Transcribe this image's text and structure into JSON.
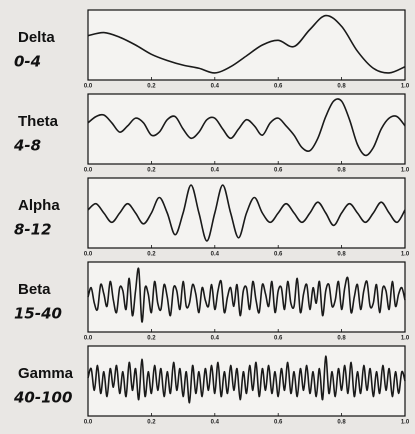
{
  "chart_data": [
    {
      "type": "line",
      "title": "Delta",
      "subtitle": "0-4",
      "color": "#1a1a1a",
      "xlim": [
        0,
        1
      ],
      "ylim": [
        -1,
        1
      ],
      "xticks": [
        {
          "value": 0,
          "label": "0.0"
        },
        0.2,
        0.4,
        0.6,
        0.8,
        {
          "value": 1,
          "label": "1.0"
        }
      ],
      "x": [
        0,
        0.05,
        0.1,
        0.15,
        0.2,
        0.25,
        0.3,
        0.35,
        0.4,
        0.45,
        0.5,
        0.55,
        0.6,
        0.65,
        0.7,
        0.75,
        0.8,
        0.85,
        0.9,
        0.95,
        1
      ],
      "values": [
        0.3,
        0.4,
        0.25,
        0.0,
        -0.3,
        -0.5,
        -0.65,
        -0.75,
        -0.9,
        -0.7,
        -0.35,
        0.0,
        0.15,
        -0.05,
        0.5,
        0.95,
        0.6,
        -0.2,
        -0.75,
        -0.9,
        -0.7
      ]
    },
    {
      "type": "line",
      "title": "Theta",
      "subtitle": "4-8",
      "color": "#1a1a1a",
      "xlim": [
        0,
        1
      ],
      "ylim": [
        -1,
        1
      ],
      "xticks": [
        {
          "value": 0,
          "label": "0.0"
        },
        0.2,
        0.4,
        0.6,
        0.8,
        {
          "value": 1,
          "label": "1.0"
        }
      ],
      "x": [
        0,
        0.025,
        0.05,
        0.075,
        0.1,
        0.125,
        0.15,
        0.175,
        0.2,
        0.225,
        0.25,
        0.275,
        0.3,
        0.325,
        0.35,
        0.375,
        0.4,
        0.425,
        0.45,
        0.475,
        0.5,
        0.525,
        0.55,
        0.575,
        0.6,
        0.625,
        0.65,
        0.675,
        0.7,
        0.725,
        0.75,
        0.775,
        0.8,
        0.825,
        0.85,
        0.875,
        0.9,
        0.925,
        0.95,
        0.975,
        1
      ],
      "values": [
        0.2,
        0.4,
        0.45,
        0.2,
        -0.1,
        0.1,
        0.35,
        0.2,
        -0.2,
        -0.1,
        0.3,
        0.4,
        0.0,
        -0.3,
        -0.1,
        0.3,
        0.35,
        0.0,
        -0.3,
        0.0,
        0.3,
        0.1,
        -0.2,
        0.2,
        0.35,
        0.1,
        -0.2,
        -0.6,
        -0.7,
        -0.3,
        0.4,
        0.9,
        0.9,
        0.3,
        -0.5,
        -0.85,
        -0.6,
        0.0,
        0.35,
        0.4,
        0.1
      ]
    },
    {
      "type": "line",
      "title": "Alpha",
      "subtitle": "8-12",
      "color": "#1a1a1a",
      "xlim": [
        0,
        1
      ],
      "ylim": [
        -1,
        1
      ],
      "xticks": [
        {
          "value": 0,
          "label": "0.0"
        },
        0.2,
        0.4,
        0.6,
        0.8,
        {
          "value": 1,
          "label": "1.0"
        }
      ],
      "x": [
        0,
        0.025,
        0.05,
        0.075,
        0.1,
        0.125,
        0.15,
        0.175,
        0.2,
        0.225,
        0.25,
        0.275,
        0.3,
        0.325,
        0.35,
        0.375,
        0.4,
        0.425,
        0.45,
        0.475,
        0.5,
        0.525,
        0.55,
        0.575,
        0.6,
        0.625,
        0.65,
        0.675,
        0.7,
        0.725,
        0.75,
        0.775,
        0.8,
        0.825,
        0.85,
        0.875,
        0.9,
        0.925,
        0.95,
        0.975,
        1
      ],
      "values": [
        0.1,
        0.3,
        0,
        -0.3,
        0,
        0.3,
        0,
        -0.35,
        0,
        0.5,
        0,
        -0.7,
        0,
        0.9,
        0,
        -0.9,
        0,
        0.9,
        0,
        -0.8,
        0,
        0.5,
        0,
        -0.3,
        0,
        0.3,
        0,
        -0.3,
        0,
        0.35,
        0,
        -0.4,
        0,
        0.3,
        0,
        -0.3,
        0,
        0.35,
        0,
        -0.3,
        0.1
      ]
    },
    {
      "type": "line",
      "title": "Beta",
      "subtitle": "15-40",
      "color": "#1a1a1a",
      "xlim": [
        0,
        1
      ],
      "ylim": [
        -1,
        1
      ],
      "xticks": [
        {
          "value": 0,
          "label": "0.0"
        },
        0.2,
        0.4,
        0.6,
        0.8,
        {
          "value": 1,
          "label": "1.0"
        }
      ],
      "x": [
        0,
        0.01,
        0.02,
        0.03,
        0.04,
        0.05,
        0.06,
        0.07,
        0.08,
        0.09,
        0.1,
        0.11,
        0.12,
        0.13,
        0.14,
        0.15,
        0.16,
        0.17,
        0.18,
        0.19,
        0.2,
        0.21,
        0.22,
        0.23,
        0.24,
        0.25,
        0.26,
        0.27,
        0.28,
        0.29,
        0.3,
        0.31,
        0.32,
        0.33,
        0.34,
        0.35,
        0.36,
        0.37,
        0.38,
        0.39,
        0.4,
        0.41,
        0.42,
        0.43,
        0.44,
        0.45,
        0.46,
        0.47,
        0.48,
        0.49,
        0.5,
        0.51,
        0.52,
        0.53,
        0.54,
        0.55,
        0.56,
        0.57,
        0.58,
        0.59,
        0.6,
        0.61,
        0.62,
        0.63,
        0.64,
        0.65,
        0.66,
        0.67,
        0.68,
        0.69,
        0.7,
        0.71,
        0.72,
        0.73,
        0.74,
        0.75,
        0.76,
        0.77,
        0.78,
        0.79,
        0.8,
        0.81,
        0.82,
        0.83,
        0.84,
        0.85,
        0.86,
        0.87,
        0.88,
        0.89,
        0.9,
        0.91,
        0.92,
        0.93,
        0.94,
        0.95,
        0.96,
        0.97,
        0.98,
        0.99,
        1
      ],
      "values": [
        0.0,
        0.3,
        -0.2,
        -0.4,
        0.4,
        0.1,
        -0.3,
        0.5,
        -0.1,
        -0.5,
        0.3,
        0.2,
        -0.4,
        0.6,
        -0.6,
        0.2,
        0.9,
        -0.8,
        0.3,
        0.1,
        -0.5,
        0.5,
        -0.2,
        -0.4,
        0.4,
        0.0,
        -0.6,
        0.3,
        0.2,
        -0.4,
        0.5,
        -0.3,
        -0.2,
        0.4,
        0.1,
        -0.5,
        0.3,
        -0.1,
        -0.3,
        0.4,
        -0.4,
        0.2,
        0.5,
        -0.5,
        0.0,
        0.3,
        -0.3,
        0.4,
        -0.6,
        0.2,
        0.3,
        -0.4,
        0.5,
        -0.1,
        -0.5,
        0.4,
        0.1,
        -0.3,
        0.5,
        -0.5,
        0.2,
        0.3,
        -0.4,
        0.5,
        -0.2,
        -0.3,
        0.6,
        -0.5,
        0.1,
        0.4,
        -0.4,
        0.3,
        -0.2,
        0.5,
        -0.6,
        0.2,
        0.4,
        -0.3,
        -0.1,
        0.5,
        -0.4,
        0.3,
        0.6,
        -0.5,
        0.0,
        0.4,
        -0.4,
        0.2,
        0.5,
        -0.3,
        -0.2,
        0.4,
        -0.5,
        0.3,
        0.2,
        -0.4,
        0.5,
        -0.3,
        0.1,
        0.3,
        -0.1
      ]
    },
    {
      "type": "line",
      "title": "Gamma",
      "subtitle": "40-100",
      "color": "#1a1a1a",
      "xlim": [
        0,
        1
      ],
      "ylim": [
        -1,
        1
      ],
      "xticks": [
        {
          "value": 0,
          "label": "0.0"
        },
        0.2,
        0.4,
        0.6,
        0.8,
        {
          "value": 1,
          "label": "1.0"
        }
      ],
      "x": [
        0,
        0.01,
        0.02,
        0.03,
        0.04,
        0.05,
        0.06,
        0.07,
        0.08,
        0.09,
        0.1,
        0.11,
        0.12,
        0.13,
        0.14,
        0.15,
        0.16,
        0.17,
        0.18,
        0.19,
        0.2,
        0.21,
        0.22,
        0.23,
        0.24,
        0.25,
        0.26,
        0.27,
        0.28,
        0.29,
        0.3,
        0.31,
        0.32,
        0.33,
        0.34,
        0.35,
        0.36,
        0.37,
        0.38,
        0.39,
        0.4,
        0.41,
        0.42,
        0.43,
        0.44,
        0.45,
        0.46,
        0.47,
        0.48,
        0.49,
        0.5,
        0.51,
        0.52,
        0.53,
        0.54,
        0.55,
        0.56,
        0.57,
        0.58,
        0.59,
        0.6,
        0.61,
        0.62,
        0.63,
        0.64,
        0.65,
        0.66,
        0.67,
        0.68,
        0.69,
        0.7,
        0.71,
        0.72,
        0.73,
        0.74,
        0.75,
        0.76,
        0.77,
        0.78,
        0.79,
        0.8,
        0.81,
        0.82,
        0.83,
        0.84,
        0.85,
        0.86,
        0.87,
        0.88,
        0.89,
        0.9,
        0.91,
        0.92,
        0.93,
        0.94,
        0.95,
        0.96,
        0.97,
        0.98,
        0.99,
        1
      ],
      "values": [
        0.1,
        0.4,
        -0.3,
        0.5,
        -0.4,
        0.3,
        -0.5,
        0.4,
        -0.2,
        0.5,
        -0.4,
        0.3,
        -0.5,
        0.6,
        -0.3,
        0.4,
        -0.6,
        0.7,
        -0.5,
        0.3,
        -0.4,
        0.5,
        -0.3,
        0.4,
        -0.5,
        0.3,
        -0.4,
        0.6,
        -0.3,
        0.4,
        -0.5,
        0.3,
        -0.7,
        0.5,
        -0.4,
        0.3,
        -0.5,
        0.4,
        -0.3,
        0.5,
        -0.4,
        0.6,
        -0.5,
        0.3,
        -0.4,
        0.5,
        -0.3,
        0.4,
        -0.6,
        0.3,
        -0.4,
        0.5,
        -0.3,
        0.6,
        -0.5,
        0.4,
        -0.3,
        0.5,
        -0.4,
        0.3,
        -0.5,
        0.4,
        -0.3,
        0.6,
        -0.4,
        0.3,
        -0.5,
        0.4,
        -0.3,
        0.5,
        -0.4,
        0.3,
        -0.5,
        0.4,
        -0.6,
        0.8,
        -0.4,
        0.3,
        -0.5,
        0.4,
        -0.3,
        0.5,
        -0.4,
        0.6,
        -0.5,
        0.3,
        -0.4,
        0.5,
        -0.3,
        0.4,
        -0.5,
        0.3,
        -0.4,
        0.5,
        -0.3,
        0.4,
        -0.5,
        0.3,
        -0.4,
        0.3,
        0.0
      ]
    }
  ]
}
